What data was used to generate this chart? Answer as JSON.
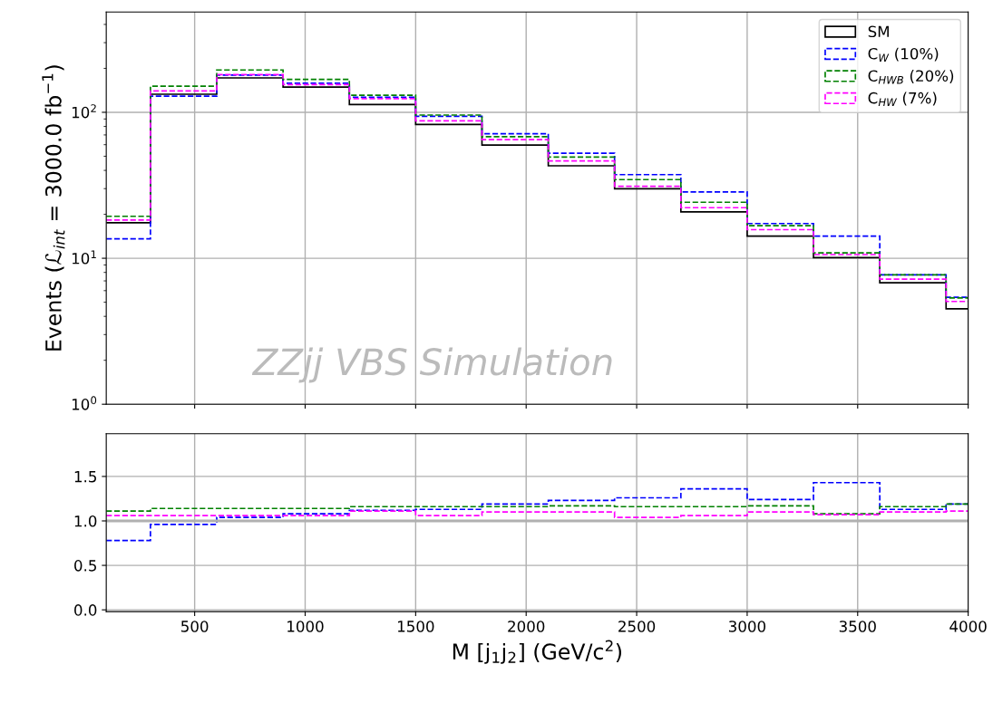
{
  "chart_data": [
    {
      "type": "histogram",
      "ylabel": "Events (ℒ$_{int}$ = 3000.0 fb$^{−1}$)",
      "bins": [
        100,
        300,
        600,
        900,
        1200,
        1500,
        1800,
        2100,
        2400,
        2700,
        3000,
        3300,
        3600,
        3900,
        4000
      ],
      "series": [
        {
          "name": "SM",
          "color": "#000000",
          "line_style": "solid",
          "values": [
            17.5,
            133,
            172,
            149,
            113,
            82.6,
            59.7,
            43,
            29.9,
            20.8,
            14.2,
            10.1,
            6.8,
            4.5
          ]
        },
        {
          "name": "C$_{W}$ (10%)",
          "color": "#0000ff",
          "line_style": "dashed",
          "values": [
            13.6,
            129,
            180,
            158,
            127,
            94,
            71.3,
            52.4,
            37.4,
            28.5,
            17.3,
            14.2,
            7.7,
            5.4
          ]
        },
        {
          "name": "C$_{HWB}$ (20%)",
          "color": "#008000",
          "line_style": "dashed",
          "values": [
            19.4,
            151,
            195,
            168,
            131,
            95.8,
            68,
            49.4,
            34.6,
            24.2,
            16.7,
            10.9,
            7.7,
            5.35
          ]
        },
        {
          "name": "C$_{HW}$ (7%)",
          "color": "#ff00ff",
          "line_style": "dashed",
          "values": [
            18.3,
            140,
            181,
            155,
            124,
            87.5,
            65,
            46.4,
            31.1,
            22.2,
            15.7,
            10.6,
            7.2,
            5.06
          ]
        }
      ],
      "log": "y",
      "xlim": [
        100,
        4000
      ],
      "xticks": [
        500,
        1000,
        1500,
        2000,
        2500,
        3000,
        3500,
        4000
      ],
      "ylim": [
        1,
        487
      ],
      "yticks": [
        {
          "value": 1,
          "label": "10$^{0}$"
        },
        {
          "value": 10,
          "label": "10$^{1}$"
        },
        {
          "value": 100,
          "label": "10$^{2}$"
        }
      ],
      "tick_labels": "y",
      "grid": true,
      "legend": "top right",
      "annotations": [
        {
          "text": "ZZjj VBS Simulation"
        }
      ]
    },
    {
      "type": "histogram",
      "xlabel": "M [j$_{1}$j$_{2}$] (GeV/c$^{2}$)",
      "bins": [
        100,
        300,
        600,
        900,
        1200,
        1500,
        1800,
        2100,
        2400,
        2700,
        3000,
        3300,
        3600,
        3900,
        4000
      ],
      "series": [
        {
          "color": "#0000ff",
          "line_style": "dashed",
          "values": [
            0.78,
            0.96,
            1.04,
            1.08,
            1.12,
            1.13,
            1.19,
            1.23,
            1.26,
            1.36,
            1.24,
            1.43,
            1.13,
            1.19
          ]
        },
        {
          "color": "#008000",
          "line_style": "dashed",
          "values": [
            1.11,
            1.14,
            1.14,
            1.14,
            1.16,
            1.16,
            1.16,
            1.17,
            1.16,
            1.16,
            1.17,
            1.08,
            1.16,
            1.19
          ]
        },
        {
          "color": "#ff00ff",
          "line_style": "dashed",
          "values": [
            1.06,
            1.06,
            1.06,
            1.06,
            1.11,
            1.06,
            1.1,
            1.1,
            1.04,
            1.06,
            1.1,
            1.07,
            1.1,
            1.11
          ]
        }
      ],
      "xlim": [
        100,
        4000
      ],
      "xticks": [
        500,
        1000,
        1500,
        2000,
        2500,
        3000,
        3500,
        4000
      ],
      "ylim": [
        -0.02,
        1.98
      ],
      "yticks": [
        {
          "value": 0,
          "label": "0.0"
        },
        0.5,
        {
          "value": 1,
          "label": "1.0"
        },
        1.5
      ],
      "ref_lines": [
        {
          "axis": "y",
          "value": 1.0,
          "color": "#b0b0b0"
        }
      ],
      "grid": true
    }
  ]
}
